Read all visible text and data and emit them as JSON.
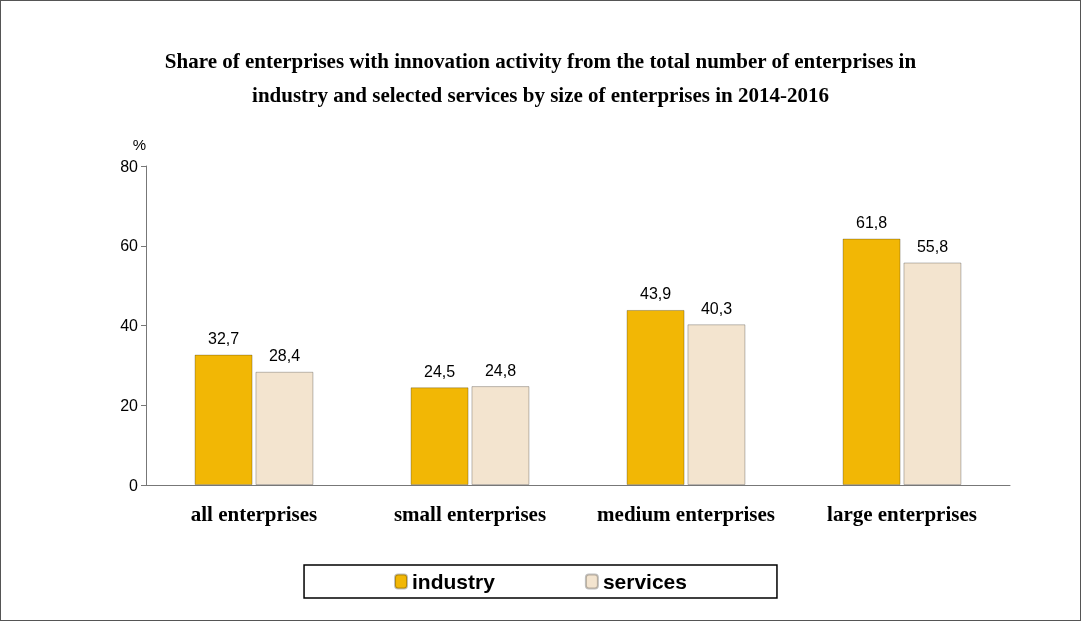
{
  "chart_data": {
    "type": "bar",
    "title": "Share of enterprises with innovation activity from the total number of enterprises in\nindustry and selected services by size of enterprises in 2014-2016",
    "ylabel": "%",
    "categories": [
      "all enterprises",
      "small enterprises",
      "medium enterprises",
      "large enterprises"
    ],
    "series": [
      {
        "name": "industry",
        "color": "#f2b705",
        "values": [
          32.7,
          24.5,
          43.9,
          61.8
        ],
        "value_labels": [
          "32,7",
          "24,5",
          "43,9",
          "61,8"
        ]
      },
      {
        "name": "services",
        "color": "#f3e4cf",
        "values": [
          28.4,
          24.8,
          40.3,
          55.8
        ],
        "value_labels": [
          "28,4",
          "24,8",
          "40,3",
          "55,8"
        ]
      }
    ],
    "ylim": [
      0,
      80
    ],
    "yticks": [
      0,
      20,
      40,
      60,
      80
    ],
    "grid": false,
    "legend": "bottom"
  }
}
